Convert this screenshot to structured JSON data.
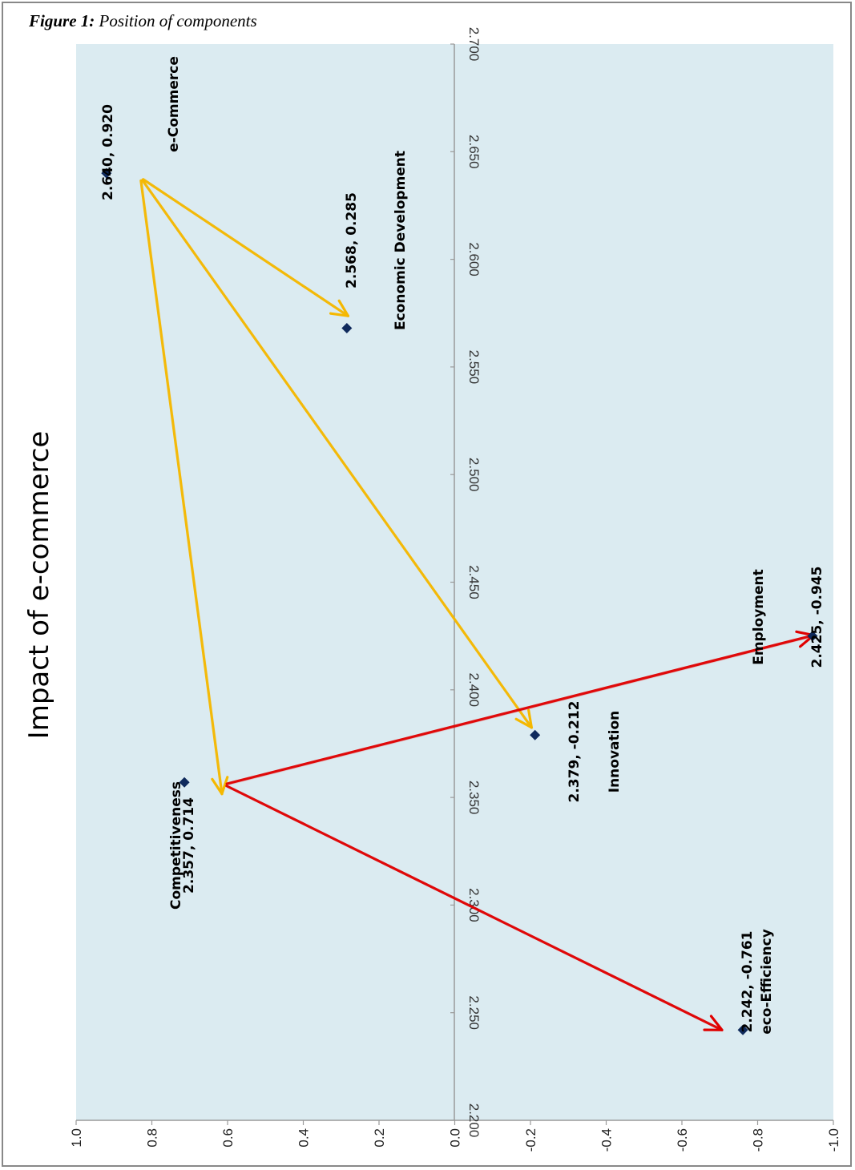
{
  "figure": {
    "caption_label": "Figure 1:",
    "caption_text": "Position of components"
  },
  "chart_data": {
    "type": "scatter",
    "title": "Impact of e-commerce",
    "xlim": [
      2.2,
      2.7
    ],
    "ylim": [
      -1.0,
      1.0
    ],
    "x_ticks": [
      "2.200",
      "2.250",
      "2.300",
      "2.350",
      "2.400",
      "2.450",
      "2.500",
      "2.550",
      "2.600",
      "2.650",
      "2.700"
    ],
    "y_ticks": [
      "1.0",
      "0.8",
      "0.6",
      "0.4",
      "0.2",
      "0.0",
      "-0.2",
      "-0.4",
      "-0.6",
      "-0.8",
      "-1.0"
    ],
    "grid": false,
    "orientation": "rotated 90 degrees",
    "points": [
      {
        "x": 2.64,
        "y": 0.92,
        "value_label": "2.640, 0.920",
        "name": "e-Commerce"
      },
      {
        "x": 2.568,
        "y": 0.285,
        "value_label": "2.568, 0.285",
        "name": "Economic Development"
      },
      {
        "x": 2.357,
        "y": 0.714,
        "value_label": "2.357, 0.714",
        "name": "Competitiveness"
      },
      {
        "x": 2.379,
        "y": -0.212,
        "value_label": "2.379, -0.212",
        "name": "Innovation"
      },
      {
        "x": 2.425,
        "y": -0.945,
        "value_label": "2.425, -0.945",
        "name": "Employment"
      },
      {
        "x": 2.242,
        "y": -0.761,
        "value_label": "2.242, -0.761",
        "name": "eco-Efficiency"
      }
    ],
    "arrows": [
      {
        "from": "e-Commerce",
        "to": "Economic Development",
        "color": "#f5b800"
      },
      {
        "from": "e-Commerce",
        "to": "Innovation",
        "color": "#f5b800"
      },
      {
        "from": "e-Commerce",
        "to": "Competitiveness",
        "color": "#f5b800"
      },
      {
        "from": "Competitiveness",
        "to": "Employment",
        "color": "#e00000"
      },
      {
        "from": "Competitiveness",
        "to": "eco-Efficiency",
        "color": "#e00000"
      }
    ],
    "colors": {
      "plot_background": "#dbebf1",
      "marker": "#0f2a5c",
      "axis": "#9a9a9a"
    }
  }
}
